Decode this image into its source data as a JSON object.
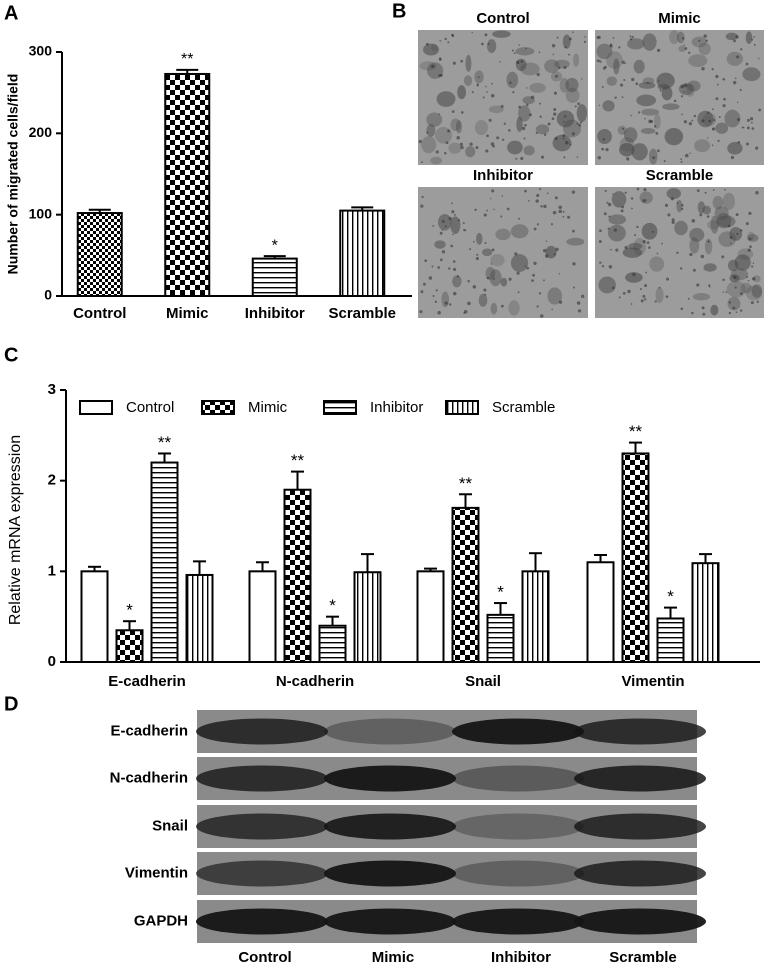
{
  "panel_labels": [
    "A",
    "B",
    "C",
    "D"
  ],
  "chart_data": [
    {
      "type": "bar",
      "categories": [
        "Control",
        "Mimic",
        "Inhibitor",
        "Scramble"
      ],
      "values": [
        102,
        273,
        46,
        105
      ],
      "errors": [
        4,
        5,
        3,
        4
      ],
      "significance": [
        null,
        "**",
        "*",
        null
      ],
      "patterns": [
        "checker-fine",
        "checker",
        "hlines",
        "vlines"
      ],
      "color": "#000000",
      "y_label": "Number of migrated cells/field",
      "ylim": [
        0,
        300
      ],
      "yticks": [
        0,
        100,
        200,
        300
      ]
    },
    {
      "type": "grouped-bar",
      "categories": [
        "E-cadherin",
        "N-cadherin",
        "Snail",
        "Vimentin"
      ],
      "series": [
        {
          "name": "Control",
          "pattern": "plain",
          "color": "#000000",
          "values": [
            1.0,
            1.0,
            1.0,
            1.1
          ],
          "errors": [
            0.05,
            0.1,
            0.03,
            0.08
          ],
          "significance": [
            null,
            null,
            null,
            null
          ]
        },
        {
          "name": "Mimic",
          "pattern": "checker",
          "color": "#000000",
          "values": [
            0.35,
            1.9,
            1.7,
            2.3
          ],
          "errors": [
            0.1,
            0.2,
            0.15,
            0.12
          ],
          "significance": [
            "*",
            "**",
            "**",
            "**"
          ]
        },
        {
          "name": "Inhibitor",
          "pattern": "hlines",
          "color": "#000000",
          "values": [
            2.2,
            0.4,
            0.52,
            0.48
          ],
          "errors": [
            0.1,
            0.1,
            0.13,
            0.12
          ],
          "significance": [
            "**",
            "*",
            "*",
            "*"
          ]
        },
        {
          "name": "Scramble",
          "pattern": "vlines",
          "color": "#000000",
          "values": [
            0.96,
            0.99,
            1.0,
            1.09
          ],
          "errors": [
            0.15,
            0.2,
            0.2,
            0.1
          ],
          "significance": [
            null,
            null,
            null,
            null
          ]
        }
      ],
      "y_label": "Relative mRNA expression",
      "ylim": [
        0,
        3
      ],
      "yticks": [
        0,
        1,
        2,
        3
      ],
      "legend": "top"
    }
  ],
  "micrographs": {
    "titles": [
      "Control",
      "Mimic",
      "Inhibitor",
      "Scramble"
    ]
  },
  "western_blot": {
    "rows": [
      "E-cadherin",
      "N-cadherin",
      "Snail",
      "Vimentin",
      "GAPDH"
    ],
    "columns": [
      "Control",
      "Mimic",
      "Inhibitor",
      "Scramble"
    ]
  }
}
